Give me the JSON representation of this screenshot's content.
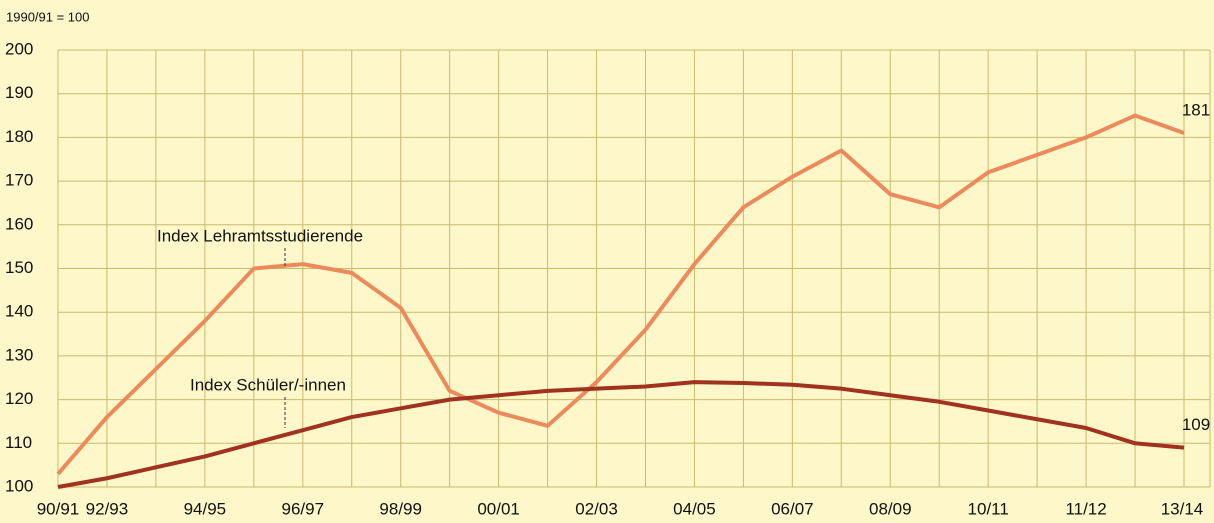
{
  "chart_data": {
    "type": "line",
    "ylabel": "1990/91 = 100",
    "categories": [
      "90/91",
      "92/93",
      null,
      "94/95",
      null,
      "96/97",
      null,
      "98/99",
      null,
      "00/01",
      null,
      "02/03",
      null,
      "04/05",
      null,
      "06/07",
      null,
      "08/09",
      null,
      "10/11",
      null,
      "11/12",
      null,
      "13/14"
    ],
    "series": [
      {
        "name": "Index Lehramtsstudierende",
        "color": "#ec8a5c",
        "values": [
          103,
          116,
          127,
          138,
          150,
          151,
          149,
          141,
          122,
          117,
          114,
          124,
          136,
          151,
          164,
          171,
          177,
          167,
          164,
          172,
          176,
          180,
          185,
          181
        ]
      },
      {
        "name": "Index Schüler/-innen",
        "color": "#a0321f",
        "values": [
          100,
          102,
          104.5,
          107,
          110,
          113,
          116,
          118,
          120,
          121,
          122,
          122.5,
          123,
          124,
          123.8,
          123.4,
          122.5,
          121,
          119.5,
          117.5,
          115.5,
          113.5,
          110,
          109
        ]
      }
    ],
    "ylim": [
      100,
      200
    ],
    "yticks": [
      100,
      110,
      120,
      130,
      140,
      150,
      160,
      170,
      180,
      190,
      200
    ],
    "grid": true
  }
}
